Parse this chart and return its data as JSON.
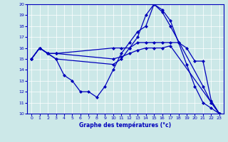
{
  "xlabel": "Graphe des températures (°c)",
  "xlim": [
    -0.5,
    23.5
  ],
  "ylim": [
    10,
    20
  ],
  "yticks": [
    10,
    11,
    12,
    13,
    14,
    15,
    16,
    17,
    18,
    19,
    20
  ],
  "xticks": [
    0,
    1,
    2,
    3,
    4,
    5,
    6,
    7,
    8,
    9,
    10,
    11,
    12,
    13,
    14,
    15,
    16,
    17,
    18,
    19,
    20,
    21,
    22,
    23
  ],
  "background_color": "#cce8e8",
  "line_color": "#0000bb",
  "lines": [
    {
      "x": [
        0,
        1,
        2,
        3,
        4,
        5,
        6,
        7,
        8,
        9,
        10,
        11,
        12,
        13,
        14,
        15,
        16,
        17,
        18,
        19,
        20,
        21,
        22,
        23
      ],
      "y": [
        15,
        16,
        15.5,
        15,
        13.5,
        13,
        12,
        12,
        11.5,
        12.5,
        14,
        15.5,
        16.5,
        17.5,
        18,
        20,
        19.5,
        18.5,
        16.5,
        14.5,
        12.5,
        11,
        10.5,
        10
      ]
    },
    {
      "x": [
        0,
        1,
        2,
        3,
        10,
        11,
        12,
        13,
        14,
        15,
        16,
        17,
        18,
        19,
        20,
        21,
        22,
        23
      ],
      "y": [
        15,
        16,
        15.5,
        15.5,
        16,
        16,
        16,
        16.5,
        16.5,
        16.5,
        16.5,
        16.5,
        16.5,
        16,
        14.8,
        14.8,
        11.2,
        10
      ]
    },
    {
      "x": [
        0,
        1,
        2,
        3,
        10,
        11,
        12,
        13,
        14,
        15,
        16,
        17,
        23
      ],
      "y": [
        15,
        16,
        15.5,
        15.5,
        15,
        15.2,
        15.5,
        15.8,
        16,
        16,
        16,
        16.2,
        10
      ]
    },
    {
      "x": [
        0,
        1,
        2,
        3,
        10,
        11,
        12,
        13,
        14,
        15,
        16,
        17,
        21,
        22,
        23
      ],
      "y": [
        15,
        16,
        15.5,
        15,
        14.5,
        15,
        16,
        17,
        19,
        20,
        19.3,
        18,
        12.5,
        11,
        10
      ]
    }
  ]
}
